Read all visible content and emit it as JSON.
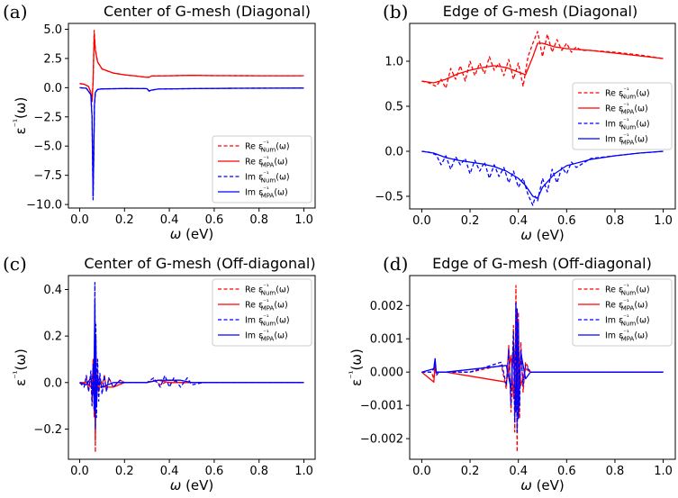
{
  "figure": {
    "legend_labels": {
      "re_num": "Re ε⁻¹Num(ω)",
      "re_mpa": "Re ε⁻¹MPA(ω)",
      "im_num": "Im ε⁻¹Num(ω)",
      "im_mpa": "Im ε⁻¹MPA(ω)"
    },
    "colors": {
      "re": "#ff0000",
      "im": "#0000ff"
    }
  },
  "chart_data": [
    {
      "type": "line",
      "panel": "(a)",
      "title": "Center of G-mesh (Diagonal)",
      "xlabel": "ω (eV)",
      "ylabel": "ε⁻¹(ω)",
      "xlim": [
        -0.05,
        1.05
      ],
      "ylim": [
        -10.3,
        5.5
      ],
      "xticks": [
        0.0,
        0.2,
        0.4,
        0.6,
        0.8,
        1.0
      ],
      "xtick_labels": [
        "0.0",
        "0.2",
        "0.4",
        "0.6",
        "0.8",
        "1.0"
      ],
      "yticks": [
        5.0,
        2.5,
        0.0,
        -2.5,
        -5.0,
        -7.5,
        -10.0
      ],
      "ytick_labels": [
        "5.0",
        "2.5",
        "0.0",
        "−2.5",
        "−5.0",
        "−7.5",
        "−10.0"
      ],
      "legend_position": "lower-right",
      "series": [
        {
          "name": "Re ε⁻¹Num(ω)",
          "color": "#ff0000",
          "dash": true,
          "x": [
            0.0,
            0.02,
            0.04,
            0.05,
            0.055,
            0.06,
            0.065,
            0.07,
            0.08,
            0.1,
            0.15,
            0.2,
            0.25,
            0.3,
            0.31,
            0.32,
            0.4,
            0.5,
            0.6,
            0.8,
            1.0
          ],
          "y": [
            0.35,
            0.3,
            0.1,
            -0.4,
            -1.2,
            0.5,
            4.9,
            3.3,
            2.2,
            1.6,
            1.25,
            1.1,
            1.0,
            0.88,
            0.9,
            1.0,
            1.02,
            1.05,
            1.03,
            1.02,
            1.02
          ]
        },
        {
          "name": "Re ε⁻¹MPA(ω)",
          "color": "#ff0000",
          "dash": false,
          "x": [
            0.0,
            0.02,
            0.04,
            0.05,
            0.055,
            0.06,
            0.065,
            0.07,
            0.08,
            0.1,
            0.15,
            0.2,
            0.25,
            0.3,
            0.31,
            0.32,
            0.4,
            0.5,
            0.6,
            0.8,
            1.0
          ],
          "y": [
            0.35,
            0.3,
            0.1,
            -0.4,
            -1.2,
            0.5,
            4.6,
            3.2,
            2.2,
            1.6,
            1.25,
            1.1,
            1.0,
            0.88,
            0.9,
            1.0,
            1.02,
            1.05,
            1.03,
            1.02,
            1.02
          ]
        },
        {
          "name": "Im ε⁻¹Num(ω)",
          "color": "#0000ff",
          "dash": true,
          "x": [
            0.0,
            0.03,
            0.05,
            0.055,
            0.06,
            0.063,
            0.066,
            0.07,
            0.08,
            0.1,
            0.2,
            0.3,
            0.31,
            0.32,
            0.35,
            0.5,
            0.7,
            1.0
          ],
          "y": [
            0.0,
            -0.05,
            -0.6,
            -2.5,
            -9.6,
            -6.0,
            -1.5,
            -0.4,
            -0.15,
            -0.1,
            -0.07,
            -0.08,
            -0.3,
            -0.22,
            -0.12,
            -0.08,
            -0.05,
            -0.03
          ]
        },
        {
          "name": "Im ε⁻¹MPA(ω)",
          "color": "#0000ff",
          "dash": false,
          "x": [
            0.0,
            0.03,
            0.05,
            0.055,
            0.06,
            0.063,
            0.066,
            0.07,
            0.08,
            0.1,
            0.2,
            0.3,
            0.31,
            0.32,
            0.35,
            0.5,
            0.7,
            1.0
          ],
          "y": [
            0.0,
            -0.05,
            -0.6,
            -2.5,
            -9.3,
            -6.0,
            -1.5,
            -0.4,
            -0.15,
            -0.1,
            -0.07,
            -0.08,
            -0.28,
            -0.2,
            -0.12,
            -0.08,
            -0.05,
            -0.03
          ]
        }
      ]
    },
    {
      "type": "line",
      "panel": "(b)",
      "title": "Edge of G-mesh (Diagonal)",
      "xlabel": "ω (eV)",
      "ylabel": "",
      "xlim": [
        -0.05,
        1.05
      ],
      "ylim": [
        -0.64,
        1.42
      ],
      "xticks": [
        0.0,
        0.2,
        0.4,
        0.6,
        0.8,
        1.0
      ],
      "xtick_labels": [
        "0.0",
        "0.2",
        "0.4",
        "0.6",
        "0.8",
        "1.0"
      ],
      "yticks": [
        1.0,
        0.5,
        0.0,
        -0.5
      ],
      "ytick_labels": [
        "1.0",
        "0.5",
        "0.0",
        "−0.5"
      ],
      "legend_position": "right",
      "series": [
        {
          "name": "Re ε⁻¹Num(ω)",
          "color": "#ff0000",
          "dash": true,
          "x": [
            0.0,
            0.03,
            0.06,
            0.08,
            0.1,
            0.12,
            0.14,
            0.16,
            0.18,
            0.2,
            0.22,
            0.24,
            0.26,
            0.28,
            0.3,
            0.32,
            0.34,
            0.36,
            0.38,
            0.4,
            0.42,
            0.44,
            0.46,
            0.48,
            0.5,
            0.52,
            0.54,
            0.56,
            0.58,
            0.6,
            0.62,
            0.64,
            0.66,
            0.7,
            0.8,
            0.9,
            1.0
          ],
          "y": [
            0.78,
            0.76,
            0.72,
            0.8,
            0.7,
            0.92,
            0.8,
            0.95,
            0.78,
            1.0,
            0.84,
            0.98,
            0.86,
            1.05,
            0.9,
            0.98,
            0.84,
            1.02,
            0.8,
            0.98,
            0.72,
            1.05,
            1.2,
            1.33,
            1.05,
            1.3,
            1.1,
            1.24,
            1.12,
            1.2,
            1.1,
            1.16,
            1.12,
            1.12,
            1.1,
            1.07,
            1.03
          ]
        },
        {
          "name": "Re ε⁻¹MPA(ω)",
          "color": "#ff0000",
          "dash": false,
          "x": [
            0.0,
            0.05,
            0.1,
            0.15,
            0.2,
            0.25,
            0.3,
            0.35,
            0.4,
            0.43,
            0.46,
            0.48,
            0.5,
            0.55,
            0.6,
            0.7,
            0.8,
            0.9,
            1.0
          ],
          "y": [
            0.78,
            0.76,
            0.8,
            0.86,
            0.9,
            0.93,
            0.95,
            0.93,
            0.88,
            0.85,
            1.05,
            1.2,
            1.2,
            1.16,
            1.14,
            1.12,
            1.09,
            1.06,
            1.03
          ]
        },
        {
          "name": "Im ε⁻¹Num(ω)",
          "color": "#0000ff",
          "dash": true,
          "x": [
            0.0,
            0.03,
            0.06,
            0.08,
            0.1,
            0.12,
            0.14,
            0.16,
            0.18,
            0.2,
            0.22,
            0.24,
            0.26,
            0.28,
            0.3,
            0.32,
            0.34,
            0.36,
            0.38,
            0.4,
            0.42,
            0.44,
            0.46,
            0.47,
            0.48,
            0.5,
            0.52,
            0.54,
            0.56,
            0.58,
            0.6,
            0.62,
            0.64,
            0.7,
            0.8,
            0.9,
            1.0
          ],
          "y": [
            0.0,
            -0.01,
            -0.04,
            -0.15,
            -0.05,
            -0.2,
            -0.06,
            -0.15,
            -0.08,
            -0.25,
            -0.1,
            -0.22,
            -0.12,
            -0.3,
            -0.15,
            -0.28,
            -0.18,
            -0.35,
            -0.22,
            -0.4,
            -0.3,
            -0.48,
            -0.6,
            -0.5,
            -0.55,
            -0.3,
            -0.45,
            -0.2,
            -0.35,
            -0.18,
            -0.25,
            -0.12,
            -0.18,
            -0.08,
            -0.05,
            -0.02,
            0.0
          ]
        },
        {
          "name": "Im ε⁻¹MPA(ω)",
          "color": "#0000ff",
          "dash": false,
          "x": [
            0.0,
            0.05,
            0.1,
            0.15,
            0.2,
            0.25,
            0.3,
            0.35,
            0.4,
            0.43,
            0.46,
            0.48,
            0.5,
            0.55,
            0.6,
            0.7,
            0.8,
            0.9,
            1.0
          ],
          "y": [
            0.0,
            -0.02,
            -0.07,
            -0.1,
            -0.12,
            -0.14,
            -0.17,
            -0.22,
            -0.3,
            -0.38,
            -0.5,
            -0.52,
            -0.4,
            -0.25,
            -0.16,
            -0.09,
            -0.05,
            -0.02,
            0.0
          ]
        }
      ]
    },
    {
      "type": "line",
      "panel": "(c)",
      "title": "Center of G-mesh (Off-diagonal)",
      "xlabel": "ω (eV)",
      "ylabel": "ε⁻¹(ω)",
      "xlim": [
        -0.05,
        1.05
      ],
      "ylim": [
        -0.33,
        0.46
      ],
      "xticks": [
        0.0,
        0.2,
        0.4,
        0.6,
        0.8,
        1.0
      ],
      "xtick_labels": [
        "0.0",
        "0.2",
        "0.4",
        "0.6",
        "0.8",
        "1.0"
      ],
      "yticks": [
        0.4,
        0.2,
        0.0,
        -0.2
      ],
      "ytick_labels": [
        "0.4",
        "0.2",
        "0.0",
        "−0.2"
      ],
      "legend_position": "top-right",
      "series": [
        {
          "name": "Re ε⁻¹Num(ω)",
          "color": "#ff0000",
          "dash": true,
          "x": [
            0.0,
            0.02,
            0.03,
            0.04,
            0.05,
            0.055,
            0.06,
            0.065,
            0.068,
            0.07,
            0.072,
            0.075,
            0.08,
            0.085,
            0.09,
            0.1,
            0.11,
            0.12,
            0.13,
            0.15,
            0.18,
            0.2,
            0.25,
            0.3,
            0.33,
            0.36,
            0.4,
            0.45,
            0.5,
            0.55,
            0.6,
            0.8,
            1.0
          ],
          "y": [
            0.0,
            -0.01,
            0.02,
            -0.03,
            0.03,
            -0.08,
            0.1,
            -0.15,
            0.3,
            -0.3,
            0.2,
            -0.1,
            0.05,
            -0.04,
            0.02,
            -0.01,
            0.03,
            -0.03,
            0.02,
            -0.02,
            0.01,
            0.0,
            0.0,
            0.0,
            0.01,
            -0.01,
            0.01,
            0.0,
            0.0,
            0.0,
            0.0,
            0.0,
            0.0
          ]
        },
        {
          "name": "Re ε⁻¹MPA(ω)",
          "color": "#ff0000",
          "dash": false,
          "x": [
            0.0,
            0.03,
            0.05,
            0.06,
            0.065,
            0.068,
            0.07,
            0.072,
            0.075,
            0.08,
            0.1,
            0.15,
            0.2,
            0.3,
            0.35,
            0.4,
            0.5,
            1.0
          ],
          "y": [
            0.0,
            0.0,
            -0.02,
            0.05,
            -0.1,
            0.2,
            -0.25,
            0.15,
            -0.05,
            -0.02,
            -0.02,
            -0.02,
            0.0,
            0.0,
            0.01,
            0.0,
            0.0,
            0.0
          ]
        },
        {
          "name": "Im ε⁻¹Num(ω)",
          "color": "#0000ff",
          "dash": true,
          "x": [
            0.0,
            0.02,
            0.03,
            0.04,
            0.05,
            0.055,
            0.06,
            0.065,
            0.068,
            0.07,
            0.072,
            0.075,
            0.08,
            0.085,
            0.09,
            0.1,
            0.11,
            0.12,
            0.13,
            0.15,
            0.18,
            0.2,
            0.3,
            0.33,
            0.36,
            0.38,
            0.4,
            0.42,
            0.45,
            0.48,
            0.5,
            0.55,
            0.6,
            1.0
          ],
          "y": [
            0.0,
            -0.02,
            0.03,
            -0.04,
            0.05,
            -0.1,
            0.08,
            -0.12,
            0.43,
            -0.2,
            0.25,
            -0.15,
            0.1,
            -0.08,
            0.04,
            -0.05,
            0.03,
            -0.04,
            0.02,
            -0.02,
            0.01,
            0.0,
            0.0,
            0.02,
            -0.02,
            0.03,
            -0.02,
            0.02,
            -0.02,
            0.02,
            -0.01,
            0.0,
            0.0,
            0.0
          ]
        },
        {
          "name": "Im ε⁻¹MPA(ω)",
          "color": "#0000ff",
          "dash": false,
          "x": [
            0.0,
            0.03,
            0.05,
            0.06,
            0.065,
            0.068,
            0.07,
            0.072,
            0.075,
            0.08,
            0.1,
            0.15,
            0.2,
            0.3,
            0.35,
            0.4,
            0.45,
            0.5,
            1.0
          ],
          "y": [
            0.0,
            -0.01,
            0.02,
            -0.05,
            0.1,
            0.35,
            -0.15,
            0.2,
            -0.1,
            0.02,
            -0.02,
            0.0,
            0.0,
            0.0,
            0.01,
            0.01,
            0.01,
            0.0,
            0.0
          ]
        }
      ]
    },
    {
      "type": "line",
      "panel": "(d)",
      "title": "Edge of G-mesh (Off-diagonal)",
      "xlabel": "ω (eV)",
      "ylabel": "ε⁻¹(ω)",
      "xlim": [
        -0.05,
        1.05
      ],
      "ylim": [
        -0.00262,
        0.0029
      ],
      "xticks": [
        0.0,
        0.2,
        0.4,
        0.6,
        0.8,
        1.0
      ],
      "xtick_labels": [
        "0.0",
        "0.2",
        "0.4",
        "0.6",
        "0.8",
        "1.0"
      ],
      "yticks": [
        0.002,
        0.001,
        0.0,
        -0.001,
        -0.002
      ],
      "ytick_labels": [
        "0.002",
        "0.001",
        "0.000",
        "−0.001",
        "−0.002"
      ],
      "legend_position": "top-right",
      "series": [
        {
          "name": "Re ε⁻¹Num(ω)",
          "color": "#ff0000",
          "dash": true,
          "x": [
            0.0,
            0.04,
            0.05,
            0.055,
            0.06,
            0.07,
            0.1,
            0.2,
            0.33,
            0.35,
            0.36,
            0.37,
            0.38,
            0.385,
            0.39,
            0.395,
            0.4,
            0.405,
            0.41,
            0.42,
            0.43,
            0.45,
            0.5,
            1.0
          ],
          "y": [
            0.0,
            0.0,
            -0.0002,
            0.0003,
            -0.0001,
            0.0,
            0.0,
            0.0,
            0.0002,
            -0.0005,
            0.0008,
            -0.0012,
            0.0014,
            -0.0018,
            0.0026,
            -0.0024,
            0.0018,
            -0.0014,
            0.0009,
            -0.0006,
            0.0003,
            0.0,
            0.0,
            0.0
          ]
        },
        {
          "name": "Re ε⁻¹MPA(ω)",
          "color": "#ff0000",
          "dash": false,
          "x": [
            0.0,
            0.05,
            0.055,
            0.06,
            0.1,
            0.35,
            0.37,
            0.38,
            0.39,
            0.395,
            0.4,
            0.41,
            0.43,
            0.45,
            1.0
          ],
          "y": [
            0.0,
            -0.0003,
            0.0002,
            0.0,
            0.0,
            -0.0003,
            0.0005,
            -0.0008,
            0.0012,
            -0.001,
            0.0008,
            -0.0004,
            0.0001,
            0.0,
            0.0
          ]
        },
        {
          "name": "Im ε⁻¹Num(ω)",
          "color": "#0000ff",
          "dash": true,
          "x": [
            0.0,
            0.04,
            0.05,
            0.055,
            0.06,
            0.07,
            0.1,
            0.2,
            0.33,
            0.35,
            0.36,
            0.37,
            0.38,
            0.385,
            0.39,
            0.395,
            0.4,
            0.405,
            0.41,
            0.42,
            0.43,
            0.45,
            0.5,
            1.0
          ],
          "y": [
            0.0,
            0.0,
            0.0001,
            0.0004,
            -0.0001,
            0.0,
            0.0,
            0.0,
            0.0003,
            -0.0004,
            0.0007,
            -0.001,
            0.0012,
            -0.0015,
            0.0021,
            -0.0018,
            0.0015,
            -0.001,
            0.0007,
            -0.0004,
            0.0002,
            0.0,
            0.0,
            0.0
          ]
        },
        {
          "name": "Im ε⁻¹MPA(ω)",
          "color": "#0000ff",
          "dash": false,
          "x": [
            0.0,
            0.05,
            0.055,
            0.06,
            0.1,
            0.35,
            0.37,
            0.38,
            0.39,
            0.395,
            0.4,
            0.41,
            0.43,
            0.45,
            1.0
          ],
          "y": [
            0.0,
            0.0001,
            0.0004,
            0.0,
            0.0,
            0.0002,
            -0.0005,
            0.0008,
            -0.0012,
            0.0019,
            -0.0014,
            0.0006,
            -0.0002,
            0.0,
            0.0
          ]
        }
      ]
    }
  ]
}
